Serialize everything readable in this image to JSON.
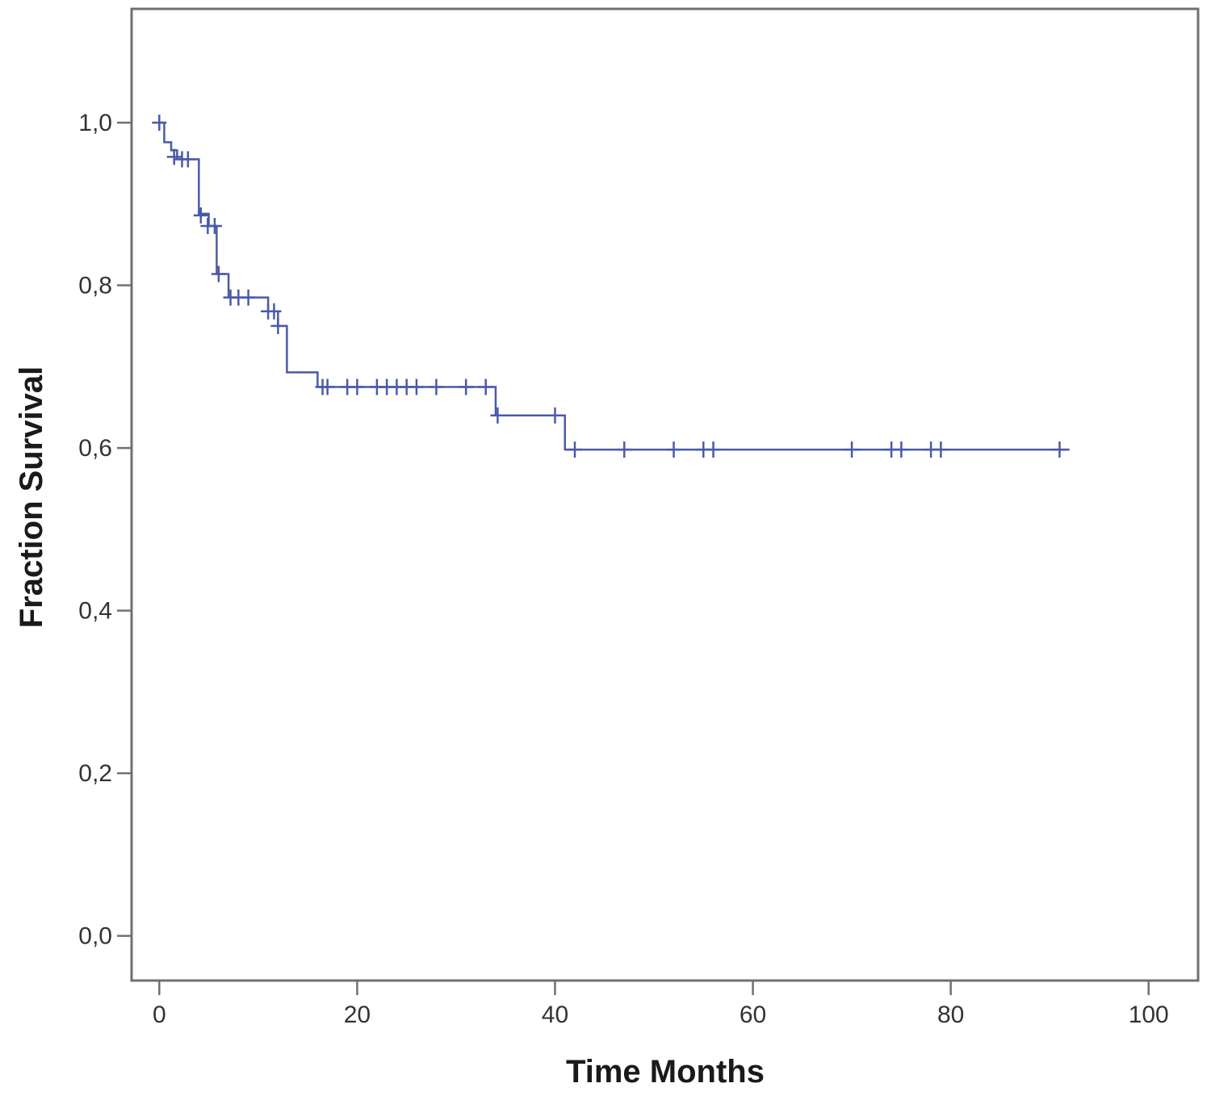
{
  "chart_data": {
    "type": "line",
    "subtype": "kaplan-meier",
    "title": "",
    "xlabel": "Time Months",
    "ylabel": "Fraction Survival",
    "xlim": [
      -2.8,
      105
    ],
    "ylim": [
      -0.055,
      1.14
    ],
    "x_ticks": [
      0,
      20,
      40,
      60,
      80,
      100
    ],
    "x_tick_labels": [
      "0",
      "20",
      "40",
      "60",
      "80",
      "100"
    ],
    "y_ticks": [
      0.0,
      0.2,
      0.4,
      0.6,
      0.8,
      1.0
    ],
    "y_tick_labels": [
      "0,0",
      "0,2",
      "0,4",
      "0,6",
      "0,8",
      "1,0"
    ],
    "grid": false,
    "legend": "none",
    "line_color": "#4a5aa8",
    "frame_color": "#707070",
    "series": [
      {
        "steps": [
          {
            "x": 0,
            "y": 1.0
          },
          {
            "x": 0.5,
            "y": 0.976
          },
          {
            "x": 1.2,
            "y": 0.966
          },
          {
            "x": 1.8,
            "y": 0.955
          },
          {
            "x": 4.0,
            "y": 0.888
          },
          {
            "x": 5.0,
            "y": 0.873
          },
          {
            "x": 5.8,
            "y": 0.814
          },
          {
            "x": 7.0,
            "y": 0.785
          },
          {
            "x": 11.0,
            "y": 0.768
          },
          {
            "x": 12.0,
            "y": 0.75
          },
          {
            "x": 12.9,
            "y": 0.693
          },
          {
            "x": 16.0,
            "y": 0.675
          },
          {
            "x": 34.0,
            "y": 0.64
          },
          {
            "x": 41.0,
            "y": 0.598
          }
        ],
        "end_x": 92,
        "censored": [
          {
            "x": 0,
            "y": 1.0
          },
          {
            "x": 1.5,
            "y": 0.958
          },
          {
            "x": 2.3,
            "y": 0.955
          },
          {
            "x": 2.9,
            "y": 0.955
          },
          {
            "x": 4.2,
            "y": 0.886
          },
          {
            "x": 4.9,
            "y": 0.873
          },
          {
            "x": 5.6,
            "y": 0.873
          },
          {
            "x": 6.0,
            "y": 0.814
          },
          {
            "x": 7.2,
            "y": 0.785
          },
          {
            "x": 8.0,
            "y": 0.785
          },
          {
            "x": 9.0,
            "y": 0.785
          },
          {
            "x": 11.0,
            "y": 0.768
          },
          {
            "x": 11.6,
            "y": 0.768
          },
          {
            "x": 12.0,
            "y": 0.75
          },
          {
            "x": 16.5,
            "y": 0.675
          },
          {
            "x": 17.0,
            "y": 0.675
          },
          {
            "x": 19.0,
            "y": 0.675
          },
          {
            "x": 20.0,
            "y": 0.675
          },
          {
            "x": 22.0,
            "y": 0.675
          },
          {
            "x": 23.0,
            "y": 0.675
          },
          {
            "x": 24.0,
            "y": 0.675
          },
          {
            "x": 25.0,
            "y": 0.675
          },
          {
            "x": 26.0,
            "y": 0.675
          },
          {
            "x": 28.0,
            "y": 0.675
          },
          {
            "x": 31.0,
            "y": 0.675
          },
          {
            "x": 33.0,
            "y": 0.675
          },
          {
            "x": 34.2,
            "y": 0.64
          },
          {
            "x": 40.0,
            "y": 0.64
          },
          {
            "x": 42.0,
            "y": 0.598
          },
          {
            "x": 47.0,
            "y": 0.598
          },
          {
            "x": 52.0,
            "y": 0.598
          },
          {
            "x": 55.0,
            "y": 0.598
          },
          {
            "x": 56.0,
            "y": 0.598
          },
          {
            "x": 70.0,
            "y": 0.598
          },
          {
            "x": 74.0,
            "y": 0.598
          },
          {
            "x": 75.0,
            "y": 0.598
          },
          {
            "x": 78.0,
            "y": 0.598
          },
          {
            "x": 79.0,
            "y": 0.598
          },
          {
            "x": 91.0,
            "y": 0.598
          }
        ]
      }
    ]
  }
}
